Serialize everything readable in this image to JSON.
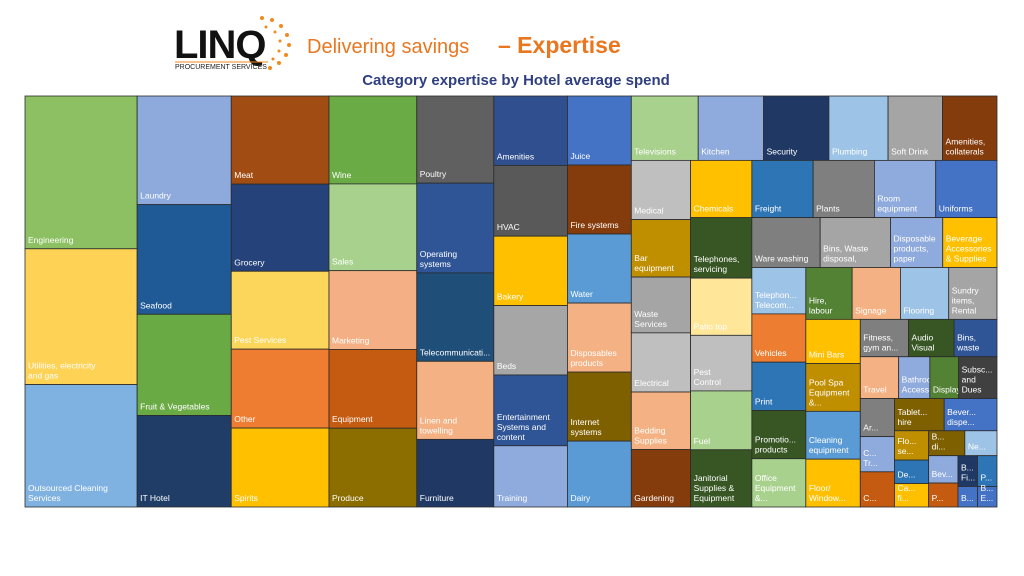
{
  "header": {
    "logo": "LINQ",
    "logo_sub": "PROCUREMENT SERVICES",
    "title_part1": "Delivering savings",
    "title_part2": "– Expertise"
  },
  "chart_data": {
    "type": "treemap",
    "title": "Category expertise by Hotel average spend",
    "categories": [
      "Engineering",
      "Utilities, electricity and gas",
      "Outsourced Cleaning Services",
      "Laundry",
      "Seafood",
      "Fruit & Vegetables",
      "IT Hotel",
      "Meat",
      "Grocery",
      "Pest Services",
      "Other",
      "Spirits",
      "Wine",
      "Sales",
      "Marketing",
      "Equipment",
      "Produce",
      "Poultry",
      "Operating systems",
      "Telecommunicati...",
      "Linen and towelling",
      "Furniture",
      "Amenities",
      "HVAC",
      "Bakery",
      "Beds",
      "Entertainment Systems and content",
      "Training",
      "Juice",
      "Fire systems",
      "Water",
      "Disposables products",
      "Internet systems",
      "Dairy",
      "Televisions",
      "Kitchen",
      "Security",
      "Plumbing",
      "Soft Drink",
      "Amenities, collaterals",
      "Medical",
      "Bar equipment",
      "Waste Services",
      "Electrical",
      "Bedding Supplies",
      "Gardening",
      "Chemicals",
      "Freight",
      "Plants",
      "Room equipment",
      "Uniforms",
      "Telephones, servicing",
      "Patio top",
      "Pest Control",
      "Fuel",
      "Janitorial Supplies & Equipment",
      "Ware washing",
      "Bins, Waste disposal,",
      "Disposable products, paper",
      "Beverage Accessories & Supplies",
      "Telephon... Telecom...",
      "Vehicles",
      "Print",
      "Promotio... products",
      "Office Equipment &...",
      "Hire, labour",
      "Signage",
      "Flooring",
      "Sundry items, Rental",
      "Mini Bars",
      "Pool Spa Equipment &...",
      "Cleaning equipment",
      "Floor/ Window...",
      "Fitness, gym an...",
      "Audio Visual",
      "Bins, waste",
      "Travel",
      "Bathroom Accesso...",
      "Display",
      "Subsc... and Dues",
      "Ar...",
      "C... Tr...",
      "C...",
      "Tablet... hire",
      "Bever... dispe...",
      "Flo... se...",
      "De...",
      "Ca... fi...",
      "B... di...",
      "Ne...",
      "Bev...",
      "P...",
      "B... Fi...",
      "P...",
      "B...",
      "B... E..."
    ],
    "values": [
      171,
      152,
      137,
      102,
      103,
      95,
      86,
      86,
      85,
      76,
      77,
      77,
      77,
      76,
      69,
      69,
      69,
      67,
      69,
      68,
      60,
      52,
      51,
      52,
      51,
      51,
      52,
      45,
      44,
      44,
      44,
      44,
      44,
      42,
      43,
      42,
      42,
      38,
      35,
      35,
      35,
      34,
      33,
      35,
      34,
      34,
      35,
      35,
      35,
      35,
      35,
      37,
      35,
      34,
      36,
      35,
      34,
      35,
      26,
      27,
      25,
      26,
      26,
      26,
      26,
      24,
      25,
      25,
      25,
      24,
      26,
      26,
      26,
      18,
      17,
      16,
      16,
      13,
      12,
      16,
      13,
      12,
      12,
      16,
      17,
      10,
      8,
      8,
      9,
      8,
      8,
      7,
      6,
      6,
      4,
      4
    ],
    "colors": [
      "#8cc063",
      "#fdd255",
      "#7fb2e0",
      "#8eaadc",
      "#1f5a96",
      "#6aaa45",
      "#1f3d66",
      "#a04c12",
      "#26427a",
      "#fcd65a",
      "#ee7d31",
      "#ffc000",
      "#6bab46",
      "#a9d18e",
      "#f4b084",
      "#c55a11",
      "#8b6d00",
      "#606060",
      "#2f5597",
      "#1f4e79",
      "#f4b183",
      "#203864",
      "#2f4f8f",
      "#595959",
      "#ffc000",
      "#a6a6a6",
      "#2f5597",
      "#8faadc",
      "#4472c4",
      "#843c0c",
      "#5b9bd5",
      "#f4b183",
      "#7f6000",
      "#5b9bd5",
      "#a9d18e",
      "#8faadc",
      "#203864",
      "#9dc3e6",
      "#a5a5a5",
      "#843c0c",
      "#bfbfbf",
      "#bf8f00",
      "#a5a5a5",
      "#bfbfbf",
      "#f4b183",
      "#843c0c",
      "#ffc000",
      "#2e75b6",
      "#7f7f7f",
      "#8faadc",
      "#4472c4",
      "#375623",
      "#ffe699",
      "#bfbfbf",
      "#a9d18e",
      "#375623",
      "#7f7f7f",
      "#a5a5a5",
      "#8faadc",
      "#ffc000",
      "#9dc3e6",
      "#ed7d31",
      "#2e75b6",
      "#375623",
      "#a9d18e",
      "#548235",
      "#f4b183",
      "#9dc3e6",
      "#a5a5a5",
      "#ffc000",
      "#bf8f00",
      "#5b9bd5",
      "#ffc000",
      "#7f7f7f",
      "#375623",
      "#2f5597",
      "#f4b183",
      "#8faadc",
      "#548235",
      "#404040",
      "#7f7f7f",
      "#8faadc",
      "#c55a11",
      "#7f6000",
      "#4472c4",
      "#bf8f00",
      "#2e75b6",
      "#ffc000",
      "#7f6000",
      "#9dc3e6",
      "#8faadc",
      "#c55a11",
      "#203864",
      "#2e75b6",
      "#4472c4",
      "#4472c4"
    ]
  }
}
